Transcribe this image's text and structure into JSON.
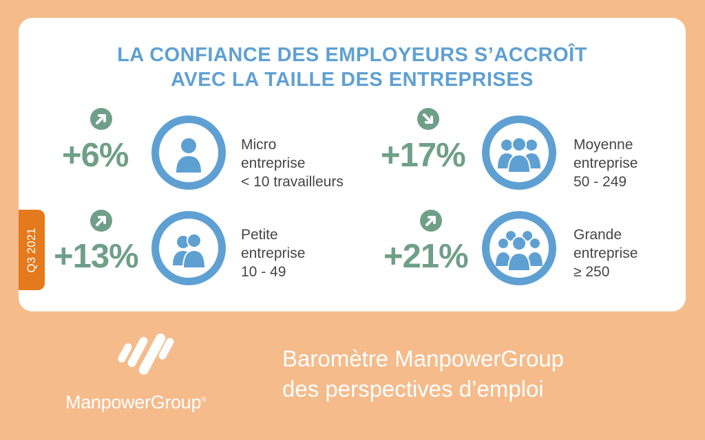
{
  "title": {
    "line1": "LA CONFIANCE DES EMPLOYEURS S’ACCROÎT",
    "line2": "AVEC LA TAILLE DES ENTREPRISES"
  },
  "period_tab": "Q3 2021",
  "segments": [
    {
      "value": "+6%",
      "trend": "up",
      "icon": "single-person-icon",
      "label_line1": "Micro",
      "label_line2": "entreprise",
      "label_line3": "< 10 travailleurs"
    },
    {
      "value": "+17%",
      "trend": "down",
      "icon": "group-of-three-icon",
      "label_line1": "Moyenne",
      "label_line2": "entreprise",
      "label_line3": "50 - 249"
    },
    {
      "value": "+13%",
      "trend": "up",
      "icon": "two-persons-icon",
      "label_line1": "Petite",
      "label_line2": "entreprise",
      "label_line3": "10 - 49"
    },
    {
      "value": "+21%",
      "trend": "up",
      "icon": "group-of-four-icon",
      "label_line1": "Grande",
      "label_line2": "entreprise",
      "label_line3": "≥ 250"
    }
  ],
  "footer": {
    "brand": "ManpowerGroup",
    "registered": "®",
    "tagline_line1": "Baromètre ManpowerGroup",
    "tagline_line2": "des perspectives d’emploi"
  },
  "colors": {
    "background": "#f5bb8b",
    "title_blue": "#5fa0d3",
    "green": "#6f9f88",
    "tab_orange": "#e5791d"
  }
}
